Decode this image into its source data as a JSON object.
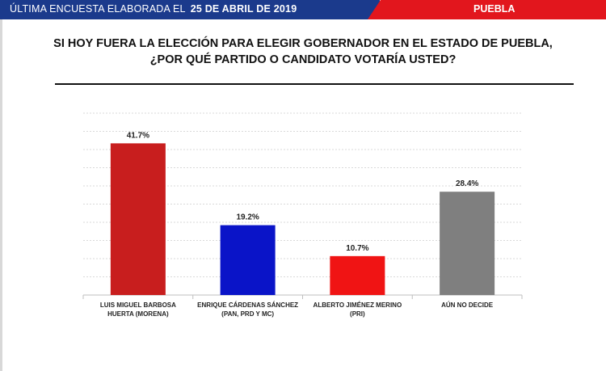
{
  "header": {
    "label": "ÚLTIMA ENCUESTA ELABORADA EL",
    "date": "25 DE ABRIL DE 2019",
    "state": "PUEBLA",
    "colors": {
      "blue": "#1b3a8c",
      "red": "#e2161d"
    }
  },
  "question": {
    "line1": "SI HOY FUERA LA ELECCIÓN PARA ELEGIR GOBERNADOR EN EL ESTADO DE PUEBLA,",
    "line2": "¿POR QUÉ PARTIDO O CANDIDATO VOTARÍA USTED?"
  },
  "chart_data": {
    "type": "bar",
    "categories": [
      [
        "LUIS MIGUEL BARBOSA",
        "HUERTA (MORENA)"
      ],
      [
        "ENRIQUE CÁRDENAS SÁNCHEZ",
        "(PAN, PRD Y MC)"
      ],
      [
        "ALBERTO JIMÉNEZ MERINO",
        "(PRI)"
      ],
      [
        "AÚN NO DECIDE"
      ]
    ],
    "values": [
      41.7,
      19.2,
      10.7,
      28.4
    ],
    "value_labels": [
      "41.7%",
      "19.2%",
      "10.7%",
      "28.4%"
    ],
    "colors": [
      "#c81e1e",
      "#0a14c8",
      "#f01414",
      "#7f7f7f"
    ],
    "ylim": [
      0,
      50
    ],
    "grid": true,
    "legend": "none"
  }
}
